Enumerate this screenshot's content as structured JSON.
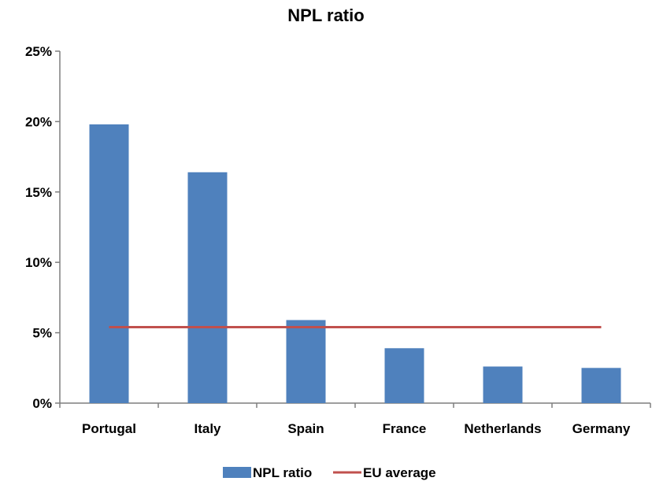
{
  "chart_data": {
    "type": "bar",
    "title": "NPL ratio",
    "xlabel": "",
    "ylabel": "",
    "categories": [
      "Portugal",
      "Italy",
      "Spain",
      "France",
      "Netherlands",
      "Germany"
    ],
    "series": [
      {
        "name": "NPL ratio",
        "type": "bar",
        "color": "#4f81bd",
        "values": [
          19.8,
          16.4,
          5.9,
          3.9,
          2.6,
          2.5
        ]
      },
      {
        "name": "EU average",
        "type": "line",
        "color": "#c0504d",
        "values": [
          5.4,
          5.4,
          5.4,
          5.4,
          5.4,
          5.4
        ]
      }
    ],
    "ylim": [
      0,
      25
    ],
    "yticks": [
      0,
      5,
      10,
      15,
      20,
      25
    ],
    "ytick_labels": [
      "0%",
      "5%",
      "10%",
      "15%",
      "20%",
      "25%"
    ],
    "grid": false,
    "legend_position": "bottom"
  }
}
